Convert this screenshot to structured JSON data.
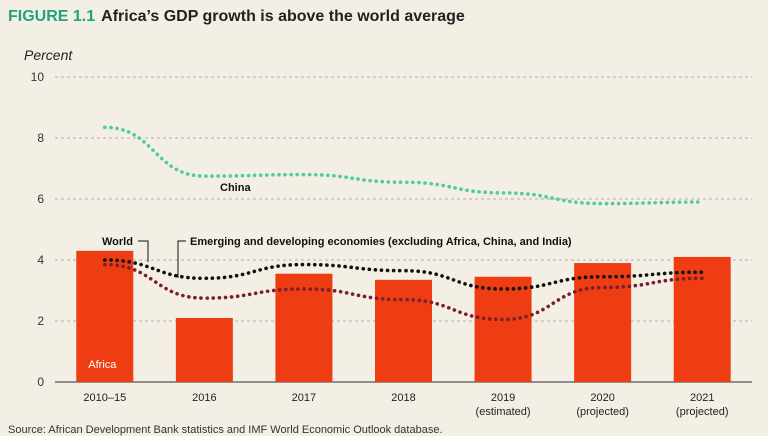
{
  "header": {
    "figure_label": "FIGURE 1.1",
    "title": "Africa’s GDP growth is above the world average"
  },
  "source": "Source: African Development Bank statistics and IMF World Economic Outlook database.",
  "chart_data": {
    "type": "bar",
    "title": "Africa’s GDP growth is above the world average",
    "ylabel": "Percent",
    "xlabel": "",
    "ylim": [
      0,
      10
    ],
    "yticks": [
      0,
      2,
      4,
      6,
      8,
      10
    ],
    "grid": true,
    "categories": [
      "2010–15",
      "2016",
      "2017",
      "2018",
      "2019",
      "2020",
      "2021"
    ],
    "category_sublabels": [
      "",
      "",
      "",
      "",
      "(estimated)",
      "(projected)",
      "(projected)"
    ],
    "series": [
      {
        "name": "Africa",
        "type": "bar",
        "color": "#ee3d12",
        "values": [
          4.3,
          2.1,
          3.55,
          3.35,
          3.45,
          3.9,
          4.1
        ]
      },
      {
        "name": "China",
        "type": "line",
        "color": "#4fcba5",
        "values": [
          8.35,
          6.75,
          6.8,
          6.55,
          6.2,
          5.85,
          5.9
        ]
      },
      {
        "name": "World",
        "type": "line",
        "color": "#111111",
        "values": [
          4.0,
          3.4,
          3.85,
          3.65,
          3.05,
          3.45,
          3.6
        ]
      },
      {
        "name": "Emerging and developing economies (excluding Africa, China, and India)",
        "type": "line",
        "color": "#7a1f2b",
        "values": [
          3.85,
          2.75,
          3.05,
          2.7,
          2.05,
          3.1,
          3.4
        ]
      }
    ]
  }
}
